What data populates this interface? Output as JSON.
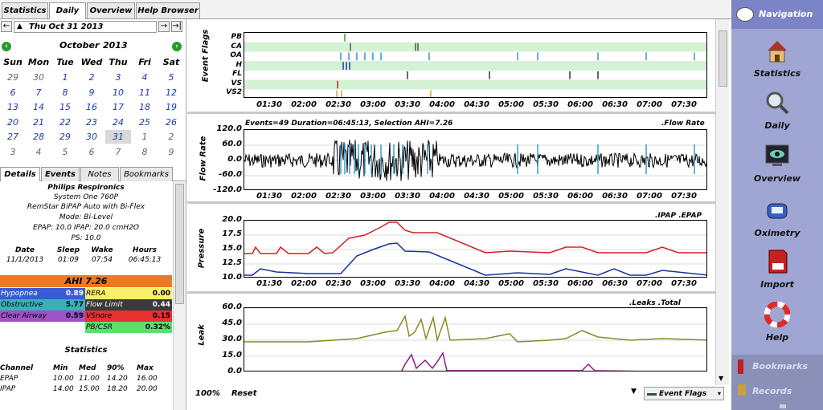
{
  "tabs": [
    "Statistics",
    "Daily",
    "Overview",
    "Help Browser"
  ],
  "date_bar": {
    "date": "Thu Oct 31 2013"
  },
  "calendar": {
    "month": "October",
    "year": "2013",
    "weekdays": [
      "Sun",
      "Mon",
      "Tue",
      "Wed",
      "Thu",
      "Fri",
      "Sat"
    ],
    "weeks": [
      [
        "29",
        "30",
        "1",
        "2",
        "3",
        "4",
        "5"
      ],
      [
        "6",
        "7",
        "8",
        "9",
        "10",
        "11",
        "12"
      ],
      [
        "13",
        "14",
        "15",
        "16",
        "17",
        "18",
        "19"
      ],
      [
        "20",
        "21",
        "22",
        "23",
        "24",
        "25",
        "26"
      ],
      [
        "27",
        "28",
        "29",
        "30",
        "31",
        "1",
        "2"
      ],
      [
        "3",
        "4",
        "5",
        "6",
        "7",
        "8",
        "9"
      ]
    ]
  },
  "detail_tabs": [
    "Details",
    "Events",
    "Notes",
    "Bookmarks"
  ],
  "machine": {
    "brand": "Philips Respironics",
    "model": "System One 760P",
    "name": "RemStar BiPAP Auto with Bi-Flex",
    "mode": "Mode: Bi-Level",
    "pressures": "EPAP: 10.0 IPAP: 20.0 cmH2O",
    "ps": "PS: 10.0"
  },
  "session": {
    "headers": [
      "Date",
      "Sleep",
      "Wake",
      "Hours"
    ],
    "values": [
      "11/1/2013",
      "01:09",
      "07:54",
      "06:45:13"
    ]
  },
  "ahi": {
    "title": "AHI 7.26",
    "cells": [
      {
        "label": "Hypopnea",
        "value": "0.89"
      },
      {
        "label": "RERA",
        "value": "0.00"
      },
      {
        "label": "Obstructive",
        "value": "5.77"
      },
      {
        "label": "Flow Limit",
        "value": "0.44"
      },
      {
        "label": "Clear Airway",
        "value": "0.59"
      },
      {
        "label": "VSnore",
        "value": "0.15"
      },
      {
        "label": "PB/CSR",
        "value": "0.32%"
      }
    ]
  },
  "statistics": {
    "title": "Statistics",
    "headers": [
      "Channel",
      "Min",
      "Med",
      "90%",
      "Max"
    ],
    "rows": [
      [
        "EPAP",
        "10.00",
        "11.00",
        "14.20",
        "16.00"
      ],
      [
        "IPAP",
        "14.00",
        "15.00",
        "18.20",
        "20.00"
      ]
    ]
  },
  "charts": {
    "x_ticks": [
      "01:30",
      "02:00",
      "02:30",
      "03:00",
      "03:30",
      "04:00",
      "04:30",
      "05:00",
      "05:30",
      "06:00",
      "06:30",
      "07:00",
      "07:30"
    ],
    "event_flags": {
      "ylabel": "Event Flags",
      "rows": [
        "PB",
        "CA",
        "OA",
        "H",
        "FL",
        "VS",
        "VS2"
      ]
    },
    "flow_rate": {
      "header": "Events=49 Duration=06:45:13, Selection AHI=7.26",
      "legend": ".Flow Rate",
      "ylabel": "Flow Rate",
      "yticks": [
        "120.0",
        "60.0",
        "0.0",
        "-60.0",
        "-120.0"
      ]
    },
    "pressure": {
      "legend": ".IPAP .EPAP",
      "ylabel": "Pressure",
      "yticks": [
        "20.0",
        "17.5",
        "15.0",
        "12.5",
        "10.0"
      ]
    },
    "leak": {
      "legend": ".Leaks .Total Leaks",
      "ylabel": "Leak",
      "yticks": [
        "60.0",
        "45.0",
        "30.0",
        "15.0",
        "0.0"
      ]
    }
  },
  "bottom_bar": {
    "zoom": "100%",
    "reset": "Reset",
    "dropdown": "Event Flags"
  },
  "nav": {
    "title": "Navigation",
    "items": [
      "Statistics",
      "Daily",
      "Overview",
      "Oximetry",
      "Import",
      "Help"
    ],
    "footer": [
      "Bookmarks",
      "Records"
    ]
  },
  "colors": {
    "ipap": "#d42020",
    "epap": "#1a2fa0",
    "leak": "#8a8a20",
    "total_leak": "#8a1a8a",
    "flag_band": "#d4f2d4",
    "ahi_header": "#f07820"
  }
}
